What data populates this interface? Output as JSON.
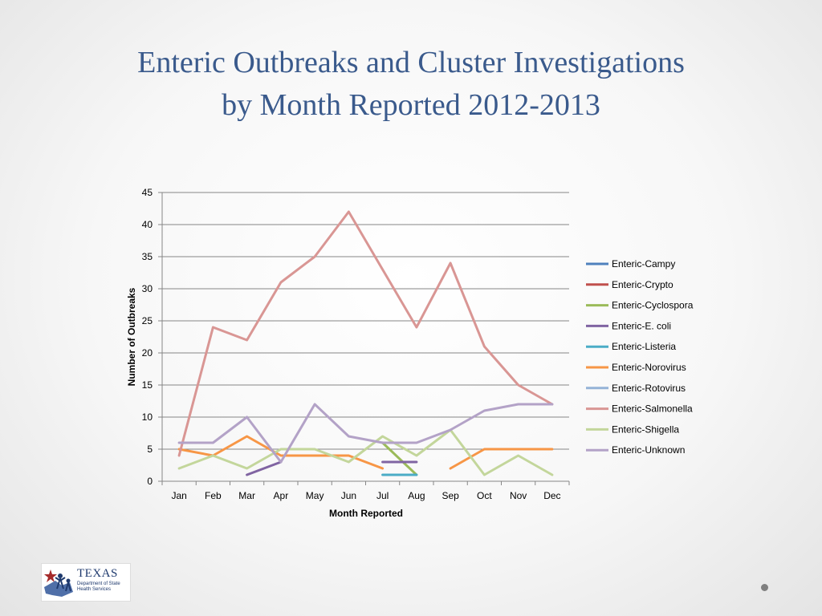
{
  "slide": {
    "title_line1": "Enteric Outbreaks and Cluster Investigations",
    "title_line2": "by Month Reported 2012-2013"
  },
  "logo": {
    "text": "TEXAS",
    "subtext": "Department of State Health Services"
  },
  "colors": {
    "title": "#3a5a8c",
    "grid": "#868686"
  },
  "chart_data": {
    "type": "line",
    "title": "",
    "xlabel": "Month Reported",
    "ylabel": "Number of Outbreaks",
    "ylim": [
      0,
      45
    ],
    "yticks": [
      0,
      5,
      10,
      15,
      20,
      25,
      30,
      35,
      40,
      45
    ],
    "grid": "horizontal",
    "legend_position": "right",
    "categories": [
      "Jan",
      "Feb",
      "Mar",
      "Apr",
      "May",
      "Jun",
      "Jul",
      "Aug",
      "Sep",
      "Oct",
      "Nov",
      "Dec"
    ],
    "series": [
      {
        "name": "Enteric-Campy",
        "color": "#4f81bd",
        "values": [
          null,
          null,
          null,
          null,
          null,
          null,
          null,
          null,
          null,
          null,
          null,
          null
        ]
      },
      {
        "name": "Enteric-Crypto",
        "color": "#c0504d",
        "values": [
          null,
          null,
          null,
          null,
          null,
          null,
          null,
          null,
          null,
          null,
          null,
          null
        ]
      },
      {
        "name": "Enteric-Cyclospora",
        "color": "#9bbb59",
        "values": [
          null,
          null,
          null,
          null,
          null,
          null,
          6,
          1,
          null,
          null,
          null,
          null
        ]
      },
      {
        "name": "Enteric-E. coli",
        "color": "#8064a2",
        "values": [
          null,
          null,
          1,
          3,
          null,
          null,
          3,
          3,
          null,
          null,
          null,
          null
        ]
      },
      {
        "name": "Enteric-Listeria",
        "color": "#4bacc6",
        "values": [
          null,
          null,
          null,
          null,
          null,
          null,
          1,
          1,
          null,
          null,
          null,
          null
        ]
      },
      {
        "name": "Enteric-Norovirus",
        "color": "#f79646",
        "values": [
          5,
          4,
          7,
          4,
          4,
          4,
          2,
          null,
          2,
          5,
          5,
          5
        ]
      },
      {
        "name": "Enteric-Rotovirus",
        "color": "#95b3d7",
        "values": [
          null,
          null,
          null,
          null,
          null,
          null,
          null,
          null,
          null,
          null,
          null,
          null
        ]
      },
      {
        "name": "Enteric-Salmonella",
        "color": "#d99694",
        "values": [
          4,
          24,
          22,
          31,
          35,
          42,
          33,
          24,
          34,
          21,
          15,
          12
        ]
      },
      {
        "name": "Enteric-Shigella",
        "color": "#c3d69b",
        "values": [
          2,
          4,
          2,
          5,
          5,
          3,
          7,
          4,
          8,
          1,
          4,
          1
        ]
      },
      {
        "name": "Enteric-Unknown",
        "color": "#b3a2c7",
        "values": [
          6,
          6,
          10,
          3,
          12,
          7,
          6,
          6,
          8,
          11,
          12,
          12
        ]
      }
    ]
  }
}
